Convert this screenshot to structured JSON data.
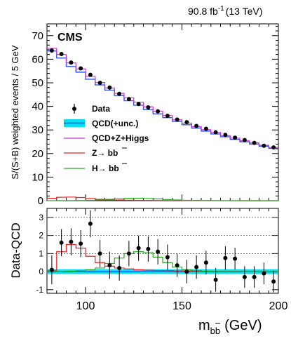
{
  "header": {
    "lumi_text": "90.8 fb",
    "lumi_exp": "-1",
    "energy_text": "(13 TeV)",
    "experiment": "CMS"
  },
  "legend": {
    "data": "Data",
    "qcd": "QCD(+unc.)",
    "qcd_zh": "QCD+Z+Higgs",
    "z": "Z→ b",
    "h": "H→ b",
    "b": "b",
    "bbar": "b"
  },
  "colors": {
    "qcd": "#3355ff",
    "qcd_band": "#00e0f0",
    "qcd_zh": "#cc33cc",
    "z": "#ee2222",
    "h": "#22aa22",
    "data": "#000000"
  },
  "chart_data": [
    {
      "type": "line",
      "panel": "top",
      "ylabel": "S/(S+B) weighted events / 5 GeV",
      "xlim": [
        80,
        200
      ],
      "ylim": [
        0,
        75
      ],
      "yticks": [
        0,
        10,
        20,
        30,
        40,
        50,
        60,
        70
      ],
      "bin_edges": [
        80,
        85,
        90,
        95,
        100,
        105,
        110,
        115,
        120,
        125,
        130,
        135,
        140,
        145,
        150,
        155,
        160,
        165,
        170,
        175,
        180,
        185,
        190,
        195,
        200
      ],
      "series": [
        {
          "name": "Data",
          "style": "points",
          "x": [
            82.5,
            87.5,
            92.5,
            97.5,
            102.5,
            107.5,
            112.5,
            117.5,
            122.5,
            127.5,
            132.5,
            137.5,
            142.5,
            147.5,
            152.5,
            157.5,
            162.5,
            167.5,
            172.5,
            177.5,
            182.5,
            187.5,
            192.5,
            197.5
          ],
          "y": [
            63.7,
            62.2,
            58.6,
            56.1,
            53.4,
            50.0,
            48.0,
            45.3,
            43.1,
            41.0,
            39.6,
            37.9,
            36.0,
            34.4,
            33.3,
            31.7,
            30.5,
            29.0,
            27.9,
            26.7,
            25.7,
            24.5,
            23.3,
            22.6
          ]
        },
        {
          "name": "QCD(+unc.)",
          "style": "step",
          "y": [
            63.5,
            60.5,
            56.9,
            54.5,
            51.5,
            49.1,
            46.9,
            44.6,
            42.4,
            40.5,
            38.6,
            36.8,
            35.2,
            33.6,
            32.2,
            30.8,
            29.5,
            28.3,
            27.1,
            26.0,
            25.0,
            24.0,
            23.1,
            22.2
          ]
        },
        {
          "name": "QCD+Z+Higgs",
          "style": "step",
          "y": [
            64.6,
            62.0,
            58.4,
            55.9,
            52.7,
            50.1,
            47.8,
            45.5,
            43.6,
            41.8,
            39.8,
            38.0,
            36.1,
            34.3,
            32.9,
            31.4,
            30.1,
            28.9,
            27.6,
            26.5,
            25.5,
            24.5,
            23.5,
            22.6
          ]
        },
        {
          "name": "Z→ bb̄",
          "style": "step",
          "y": [
            1.0,
            1.45,
            1.55,
            1.35,
            0.9,
            0.55,
            0.35,
            0.25,
            0.2,
            0.15,
            0.12,
            0.1,
            0.08,
            0.06,
            0.05,
            0.04,
            0.03,
            0.02,
            0.02,
            0.02,
            0.01,
            0.01,
            0.01,
            0.01
          ]
        },
        {
          "name": "H→ bb̄",
          "style": "step",
          "y": [
            0.02,
            0.03,
            0.05,
            0.08,
            0.15,
            0.3,
            0.55,
            0.8,
            1.0,
            1.05,
            0.95,
            0.75,
            0.5,
            0.3,
            0.15,
            0.08,
            0.05,
            0.03,
            0.02,
            0.01,
            0.01,
            0.01,
            0.0,
            0.0
          ]
        }
      ]
    },
    {
      "type": "line",
      "panel": "bottom",
      "ylabel": "Data-QCD",
      "xlabel": "m",
      "xlabel_sub": "bb",
      "xlabel_unit": "(GeV)",
      "xlim": [
        80,
        200
      ],
      "ylim": [
        -1.2,
        3.5
      ],
      "yticks": [
        -1,
        0,
        1,
        2,
        3
      ],
      "xticks": [
        100,
        150,
        200
      ],
      "dashed_y": [
        1,
        2,
        3
      ],
      "series": [
        {
          "name": "Data",
          "style": "points",
          "x": [
            82.5,
            87.5,
            92.5,
            97.5,
            102.5,
            107.5,
            112.5,
            117.5,
            122.5,
            127.5,
            132.5,
            137.5,
            142.5,
            147.5,
            152.5,
            157.5,
            162.5,
            167.5,
            172.5,
            177.5,
            182.5,
            187.5,
            192.5,
            197.5
          ],
          "y": [
            0.1,
            1.6,
            1.65,
            1.55,
            2.65,
            1.0,
            0.35,
            0.2,
            1.0,
            1.3,
            1.25,
            1.1,
            0.8,
            0.35,
            0.0,
            0.25,
            0.5,
            -0.45,
            0.75,
            0.72,
            -0.3,
            -0.3,
            -0.1,
            -0.55
          ],
          "err": [
            0.8,
            0.75,
            0.75,
            0.75,
            0.75,
            0.75,
            0.75,
            0.7,
            0.7,
            0.7,
            0.7,
            0.7,
            0.7,
            0.65,
            0.65,
            0.65,
            0.65,
            0.65,
            0.65,
            0.6,
            0.6,
            0.6,
            0.6,
            0.6
          ]
        },
        {
          "name": "Z→ bb̄",
          "style": "step",
          "y": [
            0.05,
            1.1,
            1.5,
            1.3,
            0.85,
            0.5,
            0.3,
            0.2,
            0.15,
            0.1,
            0.08,
            0.06,
            0.05,
            0.04,
            0.03,
            0.02,
            0.02,
            0.01,
            0.01,
            0.01,
            0.0,
            0.0,
            0.0,
            0.0
          ]
        },
        {
          "name": "H→ bb̄",
          "style": "step",
          "y": [
            0.0,
            0.0,
            0.02,
            0.05,
            0.1,
            0.2,
            0.45,
            0.75,
            1.0,
            1.1,
            1.05,
            0.8,
            0.5,
            0.25,
            0.1,
            0.05,
            0.02,
            0.01,
            0.0,
            0.0,
            0.0,
            0.0,
            0.0,
            0.0
          ]
        },
        {
          "name": "QCD(+unc.)",
          "style": "band",
          "y": 0,
          "unc": 0.13
        }
      ]
    }
  ]
}
